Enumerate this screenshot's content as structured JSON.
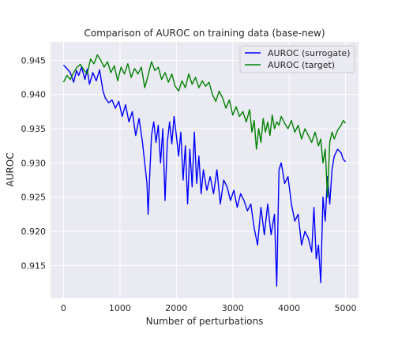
{
  "chart_data": {
    "type": "line",
    "title": "Comparison of AUROC on training data (base-new)",
    "xlabel": "Number of perturbations",
    "ylabel": "AUROC",
    "xlim": [
      -230,
      5230
    ],
    "ylim": [
      0.9102,
      0.9477
    ],
    "xticks": [
      0,
      1000,
      2000,
      3000,
      4000,
      5000
    ],
    "xtick_labels": [
      "0",
      "1000",
      "2000",
      "3000",
      "4000",
      "5000"
    ],
    "yticks": [
      0.915,
      0.92,
      0.925,
      0.93,
      0.935,
      0.94,
      0.945
    ],
    "ytick_labels": [
      "0.915",
      "0.920",
      "0.925",
      "0.930",
      "0.935",
      "0.940",
      "0.945"
    ],
    "grid": true,
    "legend_position": "upper right",
    "background": "#eaeaf2",
    "series": [
      {
        "name": "AUROC (surrogate)",
        "color": "#0000ff",
        "x": [
          0,
          60,
          120,
          180,
          230,
          270,
          320,
          380,
          420,
          460,
          520,
          580,
          640,
          700,
          740,
          800,
          860,
          920,
          980,
          1040,
          1100,
          1160,
          1220,
          1280,
          1340,
          1400,
          1440,
          1480,
          1500,
          1530,
          1560,
          1600,
          1640,
          1680,
          1720,
          1760,
          1800,
          1840,
          1880,
          1920,
          1960,
          2000,
          2040,
          2080,
          2120,
          2160,
          2200,
          2240,
          2280,
          2320,
          2360,
          2400,
          2440,
          2480,
          2540,
          2600,
          2660,
          2720,
          2780,
          2840,
          2900,
          2960,
          3020,
          3080,
          3140,
          3200,
          3260,
          3320,
          3380,
          3440,
          3500,
          3560,
          3620,
          3680,
          3740,
          3780,
          3820,
          3860,
          3920,
          3980,
          4040,
          4100,
          4160,
          4220,
          4280,
          4340,
          4400,
          4440,
          4480,
          4520,
          4560,
          4600,
          4640,
          4680,
          4720,
          4760,
          4800,
          4860,
          4920,
          4960,
          5000
        ],
        "y": [
          0.9443,
          0.9438,
          0.9432,
          0.9418,
          0.9435,
          0.9428,
          0.944,
          0.9422,
          0.9437,
          0.9415,
          0.9432,
          0.942,
          0.9436,
          0.9405,
          0.9395,
          0.9388,
          0.9392,
          0.938,
          0.939,
          0.9368,
          0.9385,
          0.936,
          0.9375,
          0.934,
          0.9365,
          0.933,
          0.93,
          0.927,
          0.9225,
          0.9285,
          0.934,
          0.936,
          0.933,
          0.9355,
          0.93,
          0.935,
          0.9245,
          0.933,
          0.936,
          0.9328,
          0.9368,
          0.934,
          0.931,
          0.9345,
          0.9275,
          0.9325,
          0.924,
          0.932,
          0.9265,
          0.9345,
          0.927,
          0.931,
          0.9255,
          0.929,
          0.926,
          0.928,
          0.9255,
          0.929,
          0.924,
          0.9275,
          0.9265,
          0.9245,
          0.926,
          0.9235,
          0.9255,
          0.9245,
          0.923,
          0.924,
          0.9205,
          0.918,
          0.9235,
          0.9195,
          0.924,
          0.9195,
          0.9225,
          0.912,
          0.929,
          0.93,
          0.927,
          0.928,
          0.924,
          0.9215,
          0.9225,
          0.918,
          0.92,
          0.919,
          0.917,
          0.9235,
          0.916,
          0.918,
          0.9125,
          0.925,
          0.9215,
          0.928,
          0.924,
          0.929,
          0.931,
          0.932,
          0.9315,
          0.9305,
          0.9302
        ]
      },
      {
        "name": "AUROC (target)",
        "color": "#008000",
        "x": [
          0,
          60,
          120,
          180,
          240,
          300,
          360,
          420,
          480,
          540,
          600,
          660,
          720,
          780,
          840,
          900,
          960,
          1020,
          1080,
          1140,
          1200,
          1260,
          1320,
          1380,
          1440,
          1500,
          1560,
          1620,
          1680,
          1740,
          1800,
          1860,
          1920,
          1980,
          2040,
          2100,
          2160,
          2220,
          2280,
          2340,
          2400,
          2460,
          2520,
          2580,
          2640,
          2700,
          2760,
          2820,
          2880,
          2940,
          3000,
          3060,
          3120,
          3180,
          3240,
          3300,
          3340,
          3380,
          3420,
          3460,
          3500,
          3540,
          3580,
          3620,
          3660,
          3700,
          3740,
          3780,
          3820,
          3860,
          3920,
          3980,
          4040,
          4100,
          4160,
          4220,
          4280,
          4340,
          4400,
          4460,
          4520,
          4560,
          4600,
          4640,
          4680,
          4720,
          4760,
          4800,
          4860,
          4920,
          4960,
          5000
        ],
        "y": [
          0.9418,
          0.9428,
          0.9422,
          0.9432,
          0.944,
          0.9444,
          0.9436,
          0.943,
          0.9452,
          0.9445,
          0.9458,
          0.945,
          0.944,
          0.9448,
          0.9432,
          0.9442,
          0.942,
          0.944,
          0.943,
          0.9445,
          0.9425,
          0.9438,
          0.943,
          0.944,
          0.941,
          0.9428,
          0.9448,
          0.9435,
          0.944,
          0.9422,
          0.9432,
          0.9418,
          0.943,
          0.9412,
          0.9405,
          0.942,
          0.941,
          0.943,
          0.9415,
          0.9425,
          0.941,
          0.942,
          0.9412,
          0.9418,
          0.94,
          0.939,
          0.9405,
          0.9395,
          0.938,
          0.9392,
          0.937,
          0.9382,
          0.9368,
          0.9375,
          0.936,
          0.9378,
          0.9345,
          0.9362,
          0.932,
          0.935,
          0.933,
          0.9365,
          0.9345,
          0.936,
          0.934,
          0.937,
          0.935,
          0.936,
          0.9355,
          0.9368,
          0.9358,
          0.935,
          0.9362,
          0.9345,
          0.9355,
          0.9335,
          0.935,
          0.934,
          0.933,
          0.9345,
          0.9325,
          0.9335,
          0.93,
          0.932,
          0.925,
          0.933,
          0.9345,
          0.9335,
          0.9348,
          0.9355,
          0.9362,
          0.9358
        ]
      }
    ]
  }
}
